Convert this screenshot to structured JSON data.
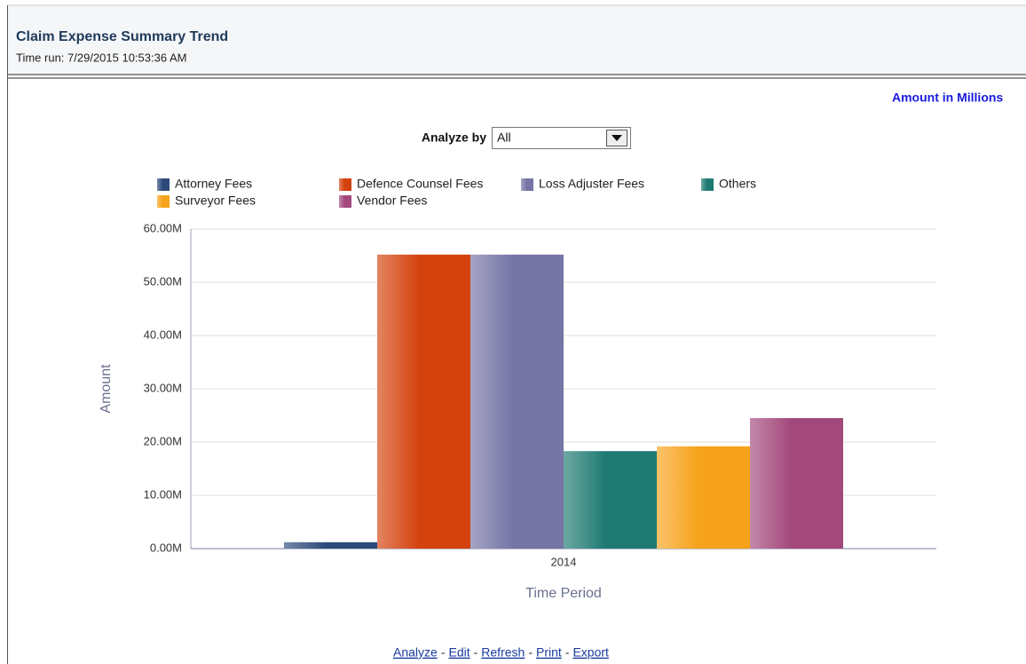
{
  "header": {
    "title": "Claim Expense Summary Trend",
    "time_run": "Time run: 7/29/2015 10:53:36 AM"
  },
  "units_note": "Amount in Millions",
  "analyze_by": {
    "label": "Analyze by",
    "value": "All"
  },
  "chart_data": {
    "type": "bar",
    "categories": [
      "2014"
    ],
    "series": [
      {
        "name": "Attorney Fees",
        "color": "#2c4a7a",
        "values": [
          1.2
        ]
      },
      {
        "name": "Defence Counsel Fees",
        "color": "#d4420e",
        "values": [
          55.2
        ]
      },
      {
        "name": "Loss Adjuster Fees",
        "color": "#7675a6",
        "values": [
          55.2
        ]
      },
      {
        "name": "Others",
        "color": "#1e7a72",
        "values": [
          18.3
        ]
      },
      {
        "name": "Surveyor Fees",
        "color": "#f7a21b",
        "values": [
          19.2
        ]
      },
      {
        "name": "Vendor Fees",
        "color": "#a3487b",
        "values": [
          24.5
        ]
      }
    ],
    "ylim": [
      0,
      60
    ],
    "yticks": [
      {
        "value": 0,
        "label": "0.00M"
      },
      {
        "value": 10,
        "label": "10.00M"
      },
      {
        "value": 20,
        "label": "20.00M"
      },
      {
        "value": 30,
        "label": "30.00M"
      },
      {
        "value": 40,
        "label": "40.00M"
      },
      {
        "value": 50,
        "label": "50.00M"
      },
      {
        "value": 60,
        "label": "60.00M"
      }
    ],
    "x_label": "Time Period",
    "y_label": "Amount",
    "grid": true
  },
  "footer": {
    "links": [
      "Analyze",
      "Edit",
      "Refresh",
      "Print",
      "Export"
    ],
    "separator": "-"
  }
}
